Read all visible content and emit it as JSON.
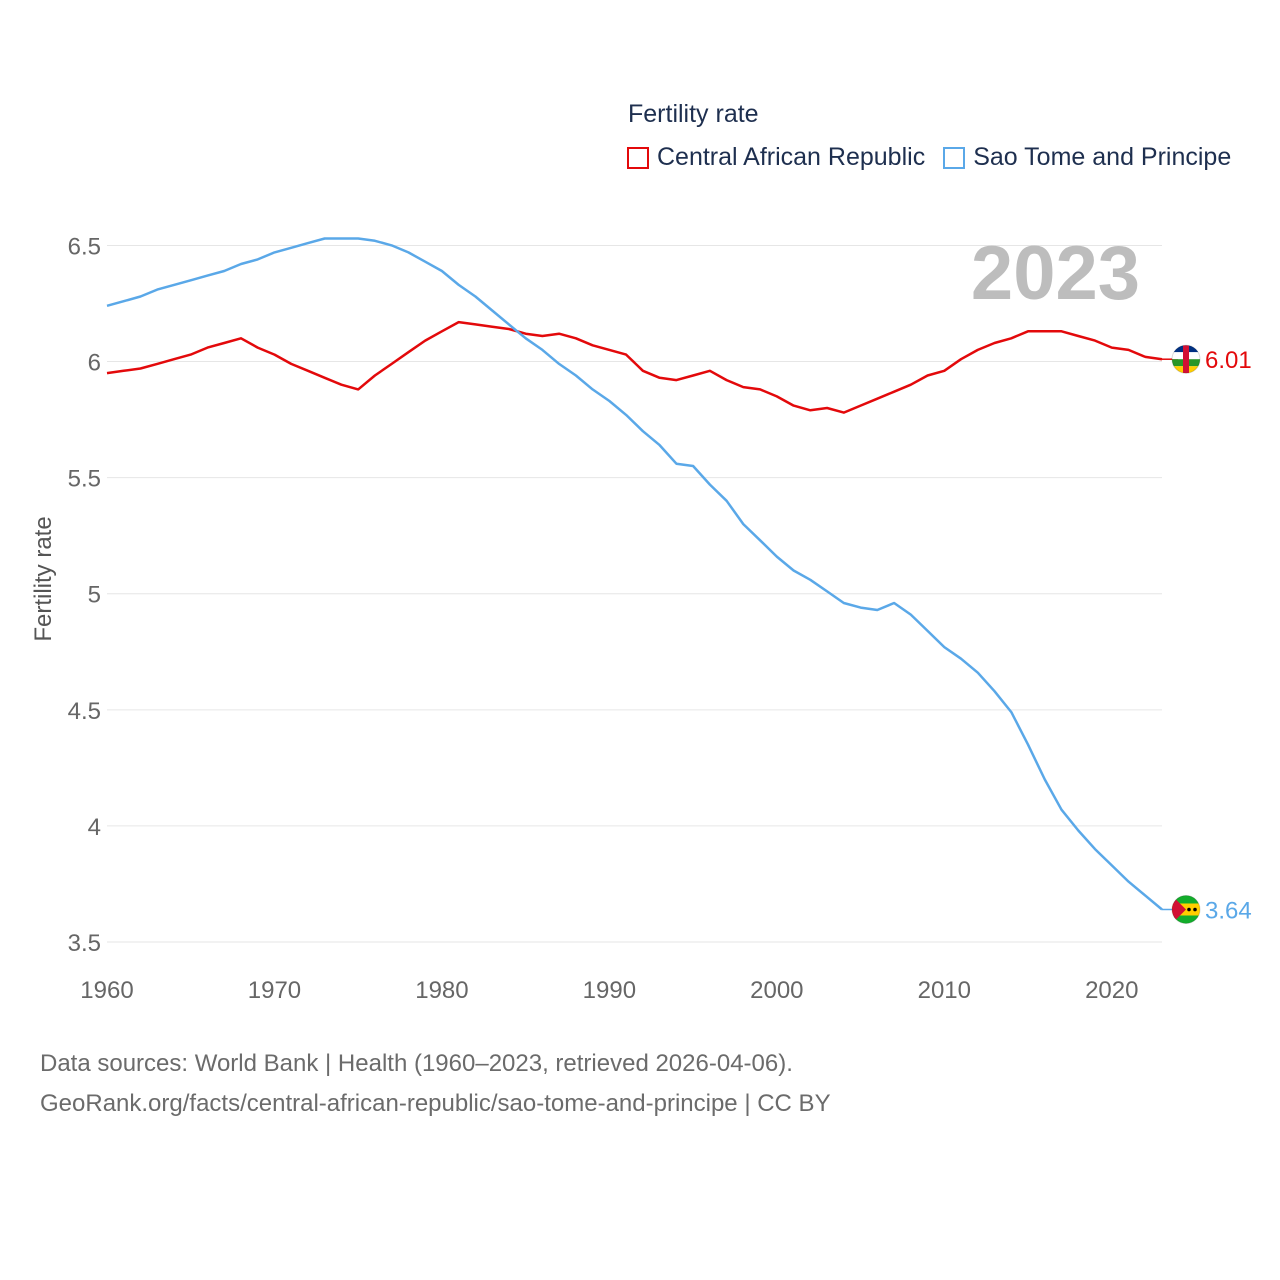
{
  "legend": {
    "title": "Fertility rate",
    "items": [
      {
        "label": "Central African Republic",
        "color": "#e3090b"
      },
      {
        "label": "Sao Tome and Principe",
        "color": "#5aa8e8"
      }
    ]
  },
  "footer": {
    "line1": "Data sources: World Bank | Health (1960–2023, retrieved 2026-04-06).",
    "line2": "GeoRank.org/facts/central-african-republic/sao-tome-and-principe | CC BY"
  },
  "chart_data": {
    "type": "line",
    "title": "Fertility rate",
    "year_label": "2023",
    "xlabel": "",
    "ylabel": "Fertility rate",
    "xlim": [
      1960,
      2023
    ],
    "ylim": [
      3.5,
      6.7
    ],
    "x_ticks": [
      1960,
      1970,
      1980,
      1990,
      2000,
      2010,
      2020
    ],
    "y_ticks": [
      3.5,
      4,
      4.5,
      5,
      5.5,
      6,
      6.5
    ],
    "grid": true,
    "legend_position": "top-right",
    "x": [
      1960,
      1961,
      1962,
      1963,
      1964,
      1965,
      1966,
      1967,
      1968,
      1969,
      1970,
      1971,
      1972,
      1973,
      1974,
      1975,
      1976,
      1977,
      1978,
      1979,
      1980,
      1981,
      1982,
      1983,
      1984,
      1985,
      1986,
      1987,
      1988,
      1989,
      1990,
      1991,
      1992,
      1993,
      1994,
      1995,
      1996,
      1997,
      1998,
      1999,
      2000,
      2001,
      2002,
      2003,
      2004,
      2005,
      2006,
      2007,
      2008,
      2009,
      2010,
      2011,
      2012,
      2013,
      2014,
      2015,
      2016,
      2017,
      2018,
      2019,
      2020,
      2021,
      2022,
      2023
    ],
    "series": [
      {
        "name": "Central African Republic",
        "color": "#e3090b",
        "end_label": "6.01",
        "values": [
          5.95,
          5.96,
          5.97,
          5.99,
          6.01,
          6.03,
          6.06,
          6.08,
          6.1,
          6.06,
          6.03,
          5.99,
          5.96,
          5.93,
          5.9,
          5.88,
          5.94,
          5.99,
          6.04,
          6.09,
          6.13,
          6.17,
          6.16,
          6.15,
          6.14,
          6.12,
          6.11,
          6.12,
          6.1,
          6.07,
          6.05,
          6.03,
          5.96,
          5.93,
          5.92,
          5.94,
          5.96,
          5.92,
          5.89,
          5.88,
          5.85,
          5.81,
          5.79,
          5.8,
          5.78,
          5.81,
          5.84,
          5.87,
          5.9,
          5.94,
          5.96,
          6.01,
          6.05,
          6.08,
          6.1,
          6.13,
          6.13,
          6.13,
          6.11,
          6.09,
          6.06,
          6.05,
          6.02,
          6.01
        ]
      },
      {
        "name": "Sao Tome and Principe",
        "color": "#5aa8e8",
        "end_label": "3.64",
        "values": [
          6.24,
          6.26,
          6.28,
          6.31,
          6.33,
          6.35,
          6.37,
          6.39,
          6.42,
          6.44,
          6.47,
          6.49,
          6.51,
          6.53,
          6.53,
          6.53,
          6.52,
          6.5,
          6.47,
          6.43,
          6.39,
          6.33,
          6.28,
          6.22,
          6.16,
          6.1,
          6.05,
          5.99,
          5.94,
          5.88,
          5.83,
          5.77,
          5.7,
          5.64,
          5.56,
          5.55,
          5.47,
          5.4,
          5.3,
          5.23,
          5.16,
          5.1,
          5.06,
          5.01,
          4.96,
          4.94,
          4.93,
          4.96,
          4.91,
          4.84,
          4.77,
          4.72,
          4.66,
          4.58,
          4.49,
          4.35,
          4.2,
          4.07,
          3.98,
          3.9,
          3.83,
          3.76,
          3.7,
          3.64
        ]
      }
    ]
  }
}
